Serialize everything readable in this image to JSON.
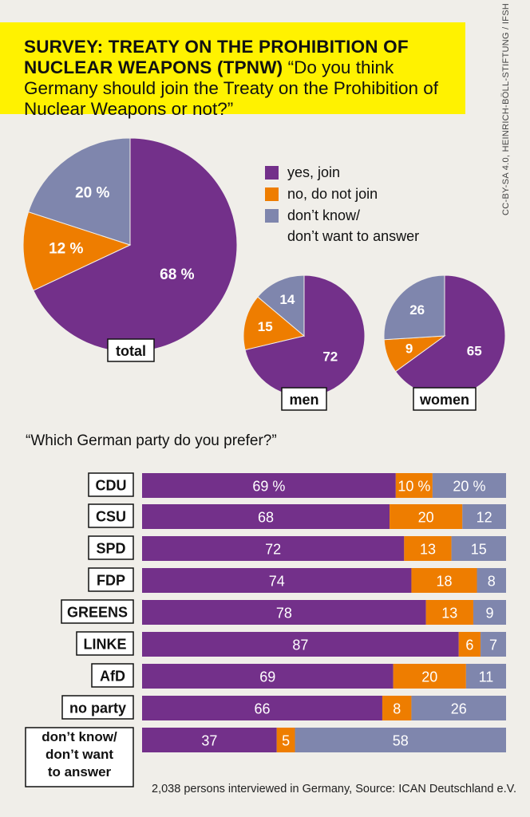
{
  "header": {
    "title": "SURVEY: TREATY ON THE PROHIBITION OF NUCLEAR WEAPONS (TPNW)",
    "question": "“Do you think Germany should join the Treaty on the Prohibition of Nuclear Weapons or not?”"
  },
  "credit": "CC-BY-SA 4.0, HEINRICH-BÖLL-STIFTUNG / IFSH",
  "colors": {
    "yes": "#73308a",
    "no": "#ee7d00",
    "dontknow": "#7f86ad"
  },
  "legend": {
    "yes": "yes, join",
    "no": "no, do not join",
    "dontknow_line1": "don’t know/",
    "dontknow_line2": "don’t want to answer"
  },
  "party_question": "“Which German party do you prefer?”",
  "footnote": "2,038 persons interviewed in Germany, Source: ICAN Deutschland e.V.",
  "chart_data": [
    {
      "type": "pie",
      "name": "total",
      "labels": [
        "yes, join",
        "no, do not join",
        "don’t know/ don’t want to answer"
      ],
      "values": [
        68,
        12,
        20
      ],
      "value_labels": [
        "68 %",
        "12 %",
        "20 %"
      ]
    },
    {
      "type": "pie",
      "name": "men",
      "labels": [
        "yes, join",
        "no, do not join",
        "don’t know/ don’t want to answer"
      ],
      "values": [
        72,
        15,
        14
      ],
      "value_labels": [
        "72",
        "15",
        "14"
      ]
    },
    {
      "type": "pie",
      "name": "women",
      "labels": [
        "yes, join",
        "no, do not join",
        "don’t know/ don’t want to answer"
      ],
      "values": [
        65,
        9,
        26
      ],
      "value_labels": [
        "65",
        "9",
        "26"
      ]
    },
    {
      "type": "bar",
      "orientation": "horizontal",
      "stacked": true,
      "categories": [
        "CDU",
        "CSU",
        "SPD",
        "FDP",
        "GREENS",
        "LINKE",
        "AfD",
        "no party",
        "don’t know/ don’t want to answer"
      ],
      "series": [
        {
          "name": "yes, join",
          "values": [
            69,
            68,
            72,
            74,
            78,
            87,
            69,
            66,
            37
          ],
          "labels": [
            "69 %",
            "68",
            "72",
            "74",
            "78",
            "87",
            "69",
            "66",
            "37"
          ]
        },
        {
          "name": "no, do not join",
          "values": [
            10,
            20,
            13,
            18,
            13,
            6,
            20,
            8,
            5
          ],
          "labels": [
            "10 %",
            "20",
            "13",
            "18",
            "13",
            "6",
            "20",
            "8",
            "5"
          ]
        },
        {
          "name": "don’t know/ don’t want to answer",
          "values": [
            20,
            12,
            15,
            8,
            9,
            7,
            11,
            26,
            58
          ],
          "labels": [
            "20 %",
            "12",
            "15",
            "8",
            "9",
            "7",
            "11",
            "26",
            "58"
          ]
        }
      ]
    }
  ]
}
